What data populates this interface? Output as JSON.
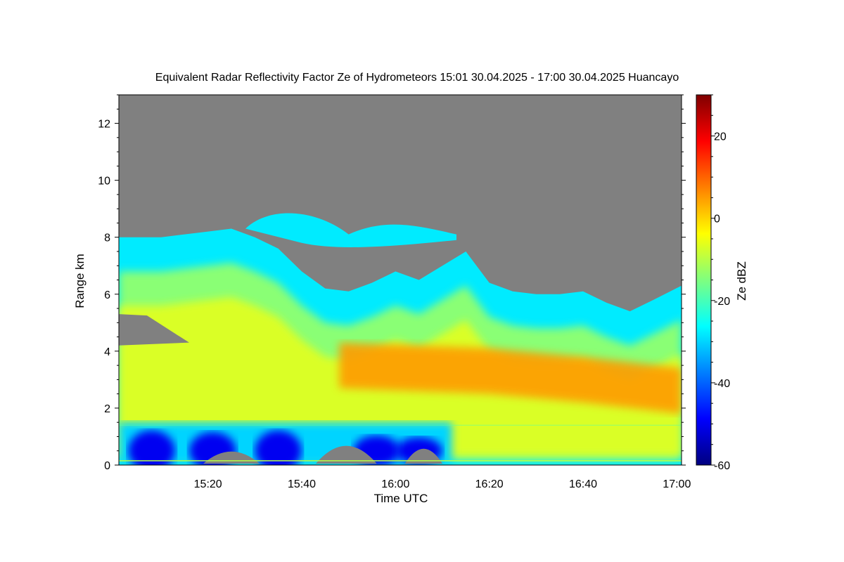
{
  "chart_data": {
    "type": "heatmap",
    "title": "Equivalent Radar Reflectivity Factor Ze of Hydrometeors   15:01 30.04.2025 - 17:00 30.04.2025 Huancayo",
    "xlabel": "Time UTC",
    "ylabel": "Range km",
    "x_ticks": [
      "15:20",
      "15:40",
      "16:00",
      "16:20",
      "16:40",
      "17:00"
    ],
    "x_tick_minutes": [
      20,
      40,
      60,
      80,
      100,
      120
    ],
    "xlim_minutes": [
      1,
      121
    ],
    "xlim": [
      "15:01",
      "17:00"
    ],
    "y_ticks": [
      "0",
      "2",
      "4",
      "6",
      "8",
      "10",
      "12"
    ],
    "ylim": [
      0,
      13
    ],
    "colorbar": {
      "label": "Ze dBZ",
      "ticks": [
        "20",
        "0",
        "-20",
        "-40",
        "-60"
      ],
      "range": [
        -60,
        30
      ],
      "colormap": [
        "#00007f",
        "#0000ff",
        "#007fff",
        "#00ffff",
        "#7fff7f",
        "#ffff00",
        "#ff7f00",
        "#ff0000",
        "#7f0000"
      ]
    },
    "no_data_color": "#808080",
    "cloud_top_km": [
      [
        1,
        8.0
      ],
      [
        10,
        8.0
      ],
      [
        20,
        8.2
      ],
      [
        25,
        8.3
      ],
      [
        30,
        8.0
      ],
      [
        35,
        7.6
      ],
      [
        40,
        6.8
      ],
      [
        45,
        6.2
      ],
      [
        50,
        6.1
      ],
      [
        55,
        6.4
      ],
      [
        60,
        6.8
      ],
      [
        65,
        6.5
      ],
      [
        70,
        7.0
      ],
      [
        75,
        7.5
      ],
      [
        80,
        6.4
      ],
      [
        85,
        6.1
      ],
      [
        90,
        6.0
      ],
      [
        95,
        6.0
      ],
      [
        100,
        6.1
      ],
      [
        105,
        5.7
      ],
      [
        110,
        5.4
      ],
      [
        115,
        5.8
      ],
      [
        121,
        6.3
      ]
    ],
    "upper_cloud_layer": {
      "x_range_minutes": [
        28,
        73
      ],
      "base_km": 7.8,
      "top_km": 9.0
    },
    "gap_layer": {
      "x_range_minutes": [
        1,
        16
      ],
      "base_km": 4.2,
      "top_km": 5.3
    },
    "max_reflectivity_band": {
      "x_range_minutes": [
        48,
        121
      ],
      "center_km": [
        [
          48,
          3.5
        ],
        [
          80,
          3.3
        ],
        [
          100,
          3.0
        ],
        [
          121,
          2.6
        ]
      ],
      "peak_dbz": 5
    },
    "low_level_weak_echo": {
      "x_range_minutes": [
        1,
        80
      ],
      "base_km": 0.0,
      "top_km": 1.5,
      "min_dbz": -50
    },
    "colors": {
      "background": "#ffffff",
      "plot_no_data": "#808080",
      "frame": "#000000"
    }
  }
}
